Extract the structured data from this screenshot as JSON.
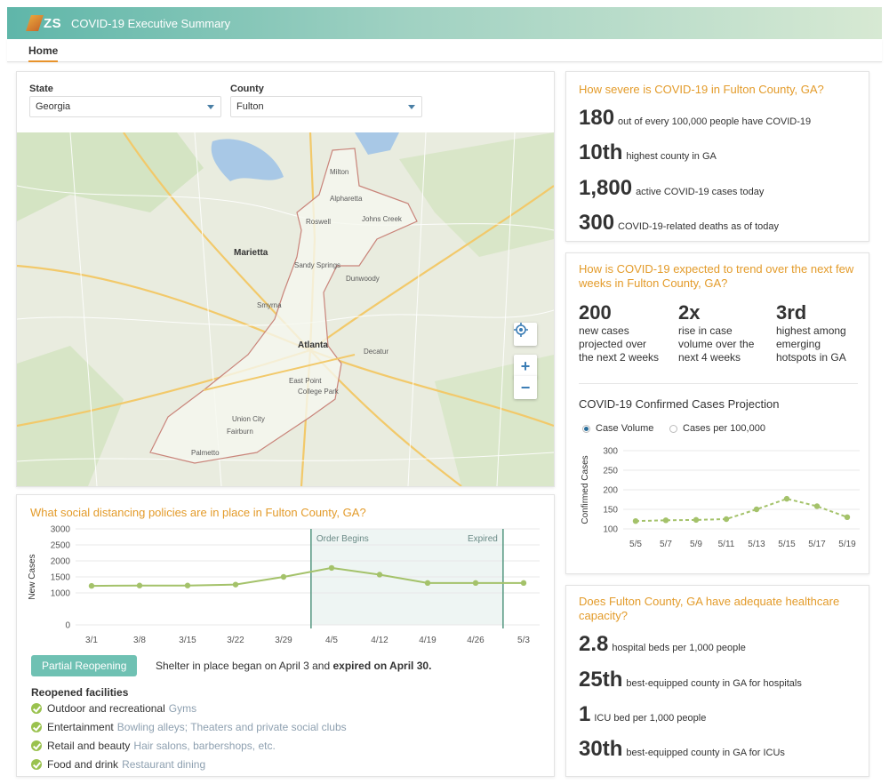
{
  "header": {
    "logo_text": "ZS",
    "title": "COVID-19 Executive Summary"
  },
  "nav": {
    "tabs": [
      {
        "label": "Home",
        "active": true
      }
    ]
  },
  "filters": {
    "state": {
      "label": "State",
      "value": "Georgia"
    },
    "county": {
      "label": "County",
      "value": "Fulton"
    }
  },
  "map": {
    "controls": {
      "locate": "locate-icon",
      "zoom_in": "+",
      "zoom_out": "−"
    },
    "labels": {
      "alpharetta": "Alpharetta",
      "roswell": "Roswell",
      "johns_creek": "Johns Creek",
      "marietta": "Marietta",
      "sandy_springs": "Sandy Springs",
      "atlanta": "Atlanta",
      "east_point": "East Point",
      "college_park": "College Park",
      "union_city": "Union City",
      "fairburn": "Fairburn",
      "palmetto": "Palmetto",
      "smyrna": "Smyrna",
      "dunwoody": "Dunwoody",
      "decatur": "Decatur",
      "milton": "Milton"
    }
  },
  "policies": {
    "title": "What social distancing policies are in place in Fulton County, GA?",
    "pill": "Partial Reopening",
    "desc_prefix": "Shelter in place began on April 3 and ",
    "desc_bold": "expired on April 30.",
    "facilities_title": "Reopened facilities",
    "facilities": [
      {
        "name": "Outdoor and recreational",
        "detail": "Gyms"
      },
      {
        "name": "Entertainment",
        "detail": "Bowling alleys; Theaters and private social clubs"
      },
      {
        "name": "Retail and beauty",
        "detail": "Hair salons, barbershops, etc."
      },
      {
        "name": "Food and drink",
        "detail": "Restaurant dining"
      }
    ]
  },
  "chart_data": [
    {
      "type": "line",
      "title": "",
      "ylabel": "New Cases",
      "xlabel": "",
      "categories": [
        "3/1",
        "3/8",
        "3/15",
        "3/22",
        "3/29",
        "4/5",
        "4/12",
        "4/19",
        "4/26",
        "5/3"
      ],
      "series": [
        {
          "values": [
            1220,
            1230,
            1230,
            1260,
            1500,
            1780,
            1570,
            1310,
            1310,
            1310
          ]
        }
      ],
      "ylim": [
        0,
        3000
      ],
      "yticks": [
        0,
        1000,
        1500,
        2000,
        2500,
        3000
      ],
      "annotations": {
        "band_start_label": "Order Begins",
        "band_end_label": "Expired",
        "band_from": "4/2",
        "band_to": "4/30"
      },
      "grid": true,
      "color": "#a4c26a"
    },
    {
      "type": "line",
      "title": "COVID-19 Confirmed Cases Projection",
      "ylabel": "Confirmed Cases",
      "xlabel": "",
      "categories": [
        "5/5",
        "5/7",
        "5/9",
        "5/11",
        "5/13",
        "5/15",
        "5/17",
        "5/19"
      ],
      "series": [
        {
          "values": [
            120,
            122,
            123,
            125,
            150,
            177,
            158,
            130
          ]
        }
      ],
      "ylim": [
        100,
        300
      ],
      "yticks": [
        100,
        150,
        200,
        250,
        300
      ],
      "style": "dashed",
      "grid": true,
      "color": "#a4c26a"
    }
  ],
  "severity": {
    "title": "How severe is COVID-19 in Fulton County, GA?",
    "stats": [
      {
        "big": "180",
        "text": "out of every 100,000 people have COVID-19"
      },
      {
        "big": "10th",
        "text": "highest county in GA"
      },
      {
        "big": "1,800",
        "text": "active COVID-19 cases today"
      },
      {
        "big": "300",
        "text": "COVID-19-related deaths as of today"
      }
    ]
  },
  "trend": {
    "title": "How is COVID-19 expected to trend over the next few weeks in Fulton County, GA?",
    "cols": [
      {
        "big": "200",
        "l1": "new cases",
        "l2": "projected over",
        "l3": "the next 2 weeks"
      },
      {
        "big": "2x",
        "l1": "rise in case",
        "l2": "volume over the",
        "l3": "next 4 weeks"
      },
      {
        "big": "3rd",
        "l1": "highest among",
        "l2": "emerging",
        "l3": "hotspots in GA"
      }
    ],
    "radio_case_volume": "Case Volume",
    "radio_per_100k": "Cases per 100,000"
  },
  "capacity": {
    "title": "Does Fulton County, GA have adequate healthcare capacity?",
    "stats": [
      {
        "big": "2.8",
        "text": "hospital beds per 1,000 people"
      },
      {
        "big": "25th",
        "text": "best-equipped county in GA for hospitals"
      },
      {
        "big": "1",
        "text": "ICU bed per 1,000 people"
      },
      {
        "big": "30th",
        "text": "best-equipped county in GA for ICUs"
      }
    ]
  }
}
